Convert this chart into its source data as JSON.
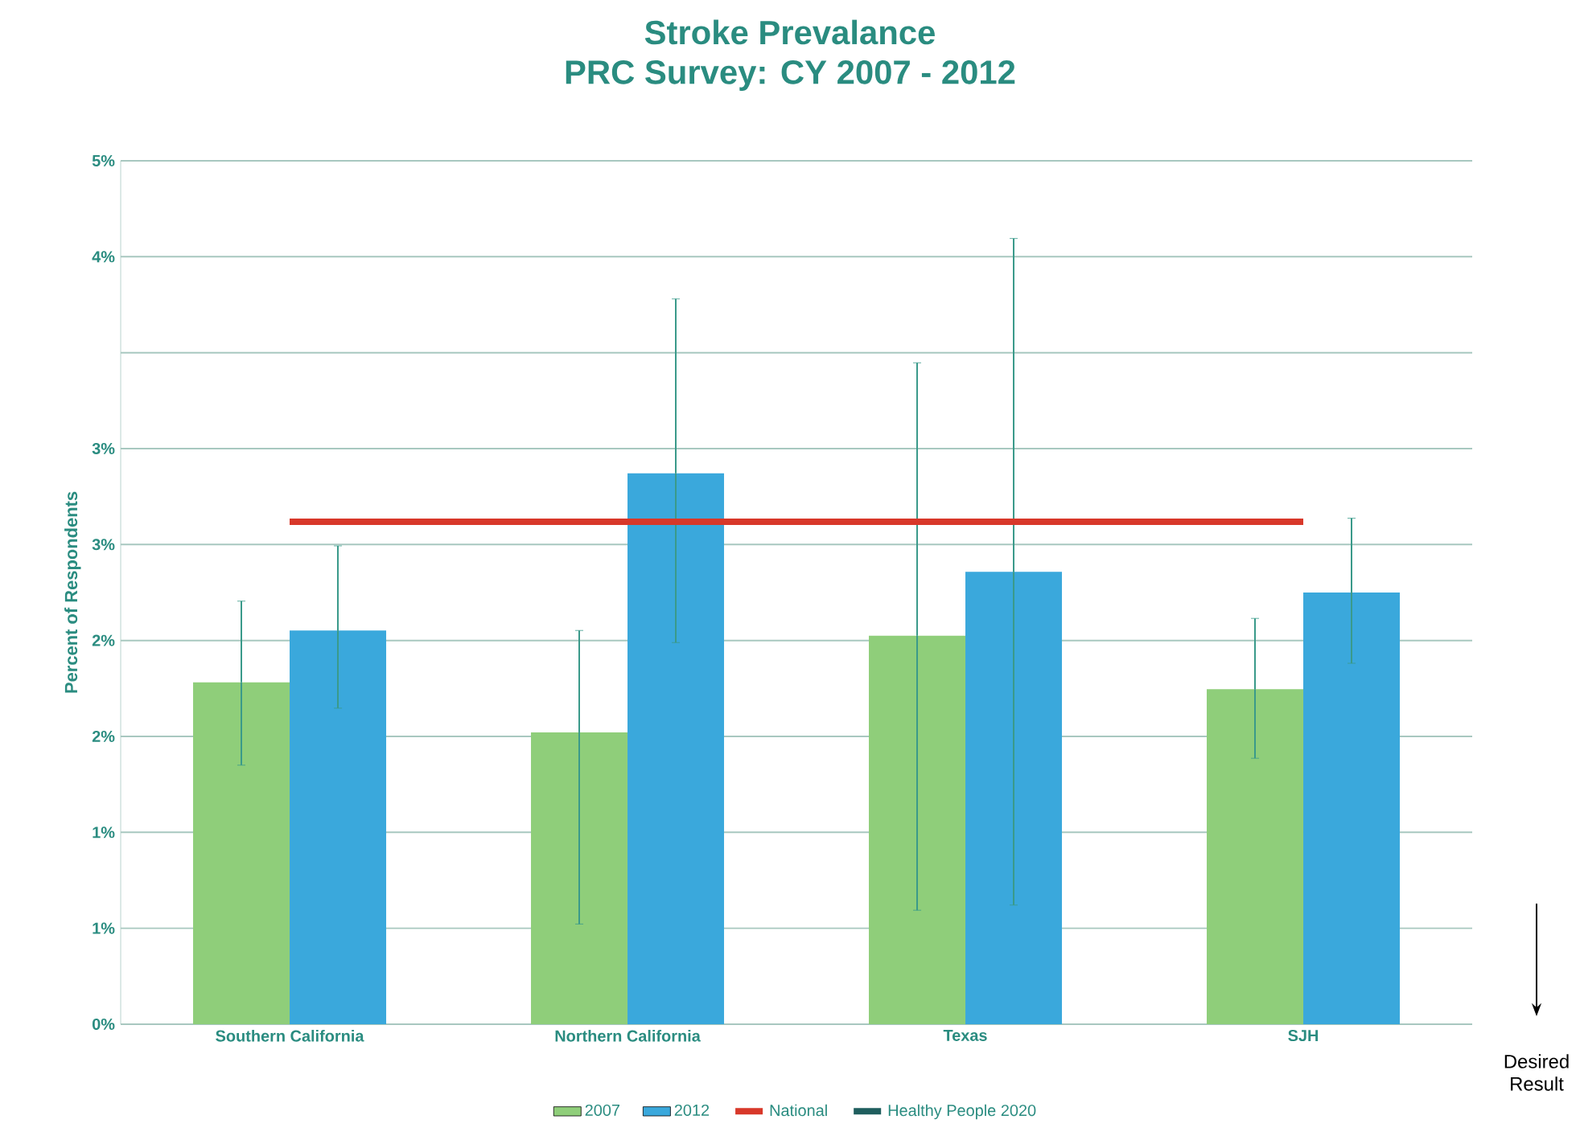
{
  "chart_data": {
    "type": "bar",
    "title": "Stroke Prevalance",
    "subtitle": "PRC Survey:  CY 2007 - 2012",
    "ylabel": "Percent of Respondents",
    "categories": [
      "Southern California",
      "Northern California",
      "Texas",
      "SJH"
    ],
    "series": [
      {
        "name": "2007",
        "color": "#8fce7a",
        "values": [
          1.98,
          1.69,
          2.25,
          1.94
        ],
        "errors": [
          [
            1.5,
            2.45
          ],
          [
            0.58,
            2.28
          ],
          [
            0.66,
            3.83
          ],
          [
            1.54,
            2.35
          ]
        ]
      },
      {
        "name": "2012",
        "color": "#3aa8dc",
        "values": [
          2.28,
          3.19,
          2.62,
          2.5
        ],
        "errors": [
          [
            1.83,
            2.77
          ],
          [
            2.21,
            4.2
          ],
          [
            0.69,
            4.55
          ],
          [
            2.09,
            2.93
          ]
        ]
      },
      {
        "name": "National",
        "type": "line",
        "color": "#d8382a",
        "values": [
          2.91,
          2.91,
          2.91,
          2.91
        ]
      },
      {
        "name": "Healthy People 2020",
        "type": "line",
        "color": "#1f5e5e",
        "values": [
          null,
          null,
          null,
          null
        ]
      }
    ],
    "ylim": [
      0,
      5
    ],
    "yticks": [
      {
        "value": 0,
        "label": "0%"
      },
      {
        "value": 0.5556,
        "label": "1%"
      },
      {
        "value": 1.1111,
        "label": "1%"
      },
      {
        "value": 1.6667,
        "label": "2%"
      },
      {
        "value": 2.2222,
        "label": "2%"
      },
      {
        "value": 2.7778,
        "label": "3%"
      },
      {
        "value": 3.3333,
        "label": "3%"
      },
      {
        "value": 3.8889,
        "label": null
      },
      {
        "value": 4.4444,
        "label": "4%"
      },
      {
        "value": 5,
        "label": "5%"
      }
    ],
    "grid": "y",
    "legend": "bottom",
    "annotations": [
      "Desired Result"
    ]
  }
}
